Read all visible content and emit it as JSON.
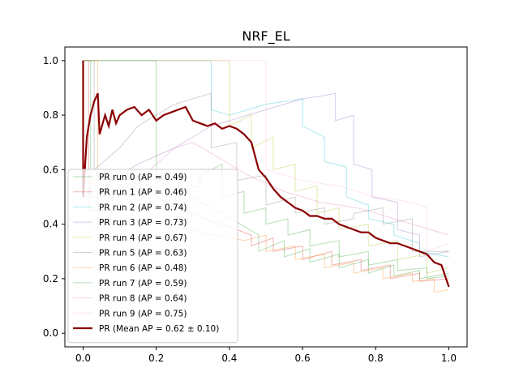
{
  "chart_data": {
    "type": "line",
    "title": "NRF_EL",
    "xlabel": "",
    "ylabel": "",
    "xlim": [
      -0.05,
      1.05
    ],
    "ylim": [
      -0.05,
      1.05
    ],
    "xticks": [
      0.0,
      0.2,
      0.4,
      0.6,
      0.8,
      1.0
    ],
    "yticks": [
      0.0,
      0.2,
      0.4,
      0.6,
      0.8,
      1.0
    ],
    "xtick_labels": [
      "0.0",
      "0.2",
      "0.4",
      "0.6",
      "0.8",
      "1.0"
    ],
    "ytick_labels": [
      "0.0",
      "0.2",
      "0.4",
      "0.6",
      "0.8",
      "1.0"
    ],
    "grid": false,
    "legend_position": "lower-left",
    "series": [
      {
        "name": "PR run 0 (AP = 0.49)",
        "color": "#2ca02c",
        "x": [
          0,
          0.02,
          0.02,
          0.06,
          0.06,
          0.15,
          0.2,
          0.28,
          0.32,
          0.38,
          0.43,
          0.48,
          0.48,
          0.55,
          0.55,
          0.62,
          0.62,
          0.7,
          0.7,
          0.78,
          0.78,
          0.85,
          0.85,
          0.92,
          0.92,
          1.0
        ],
        "y": [
          1.0,
          1.0,
          0.5,
          0.5,
          0.55,
          0.6,
          0.56,
          0.52,
          0.48,
          0.44,
          0.4,
          0.36,
          0.3,
          0.34,
          0.28,
          0.31,
          0.26,
          0.29,
          0.24,
          0.27,
          0.22,
          0.25,
          0.21,
          0.23,
          0.2,
          0.22
        ]
      },
      {
        "name": "PR run 1 (AP = 0.46)",
        "color": "#d62728",
        "x": [
          0,
          0.015,
          0.015,
          0.08,
          0.08,
          0.14,
          0.2,
          0.26,
          0.33,
          0.4,
          0.46,
          0.46,
          0.52,
          0.52,
          0.6,
          0.6,
          0.68,
          0.68,
          0.76,
          0.76,
          0.84,
          0.84,
          0.92,
          0.92,
          1.0
        ],
        "y": [
          1.0,
          1.0,
          0.45,
          0.45,
          0.52,
          0.55,
          0.5,
          0.46,
          0.42,
          0.39,
          0.36,
          0.32,
          0.35,
          0.3,
          0.32,
          0.27,
          0.3,
          0.25,
          0.27,
          0.23,
          0.25,
          0.2,
          0.22,
          0.19,
          0.2
        ]
      },
      {
        "name": "PR run 2 (AP = 0.74)",
        "color": "#17becf",
        "x": [
          0,
          0.35,
          0.35,
          0.4,
          0.45,
          0.5,
          0.55,
          0.6,
          0.6,
          0.66,
          0.66,
          0.72,
          0.72,
          0.78,
          0.78,
          0.85,
          0.85,
          0.92,
          0.92,
          1.0
        ],
        "y": [
          1.0,
          1.0,
          0.82,
          0.8,
          0.82,
          0.84,
          0.85,
          0.86,
          0.76,
          0.72,
          0.63,
          0.61,
          0.5,
          0.47,
          0.42,
          0.4,
          0.36,
          0.33,
          0.3,
          0.28
        ]
      },
      {
        "name": "PR run 3 (AP = 0.73)",
        "color": "#9467bd",
        "x": [
          0,
          0.05,
          0.1,
          0.15,
          0.2,
          0.25,
          0.3,
          0.35,
          0.4,
          0.45,
          0.5,
          0.55,
          0.6,
          0.65,
          0.69,
          0.69,
          0.74,
          0.74,
          0.79,
          0.79,
          0.86,
          0.86,
          0.92,
          0.92,
          1.0
        ],
        "y": [
          0.5,
          0.53,
          0.58,
          0.62,
          0.65,
          0.68,
          0.72,
          0.76,
          0.78,
          0.8,
          0.82,
          0.84,
          0.86,
          0.87,
          0.88,
          0.78,
          0.8,
          0.62,
          0.6,
          0.5,
          0.48,
          0.38,
          0.36,
          0.28,
          0.3
        ]
      },
      {
        "name": "PR run 4 (AP = 0.67)",
        "color": "#bcbd22",
        "x": [
          0,
          0.4,
          0.4,
          0.46,
          0.46,
          0.52,
          0.52,
          0.58,
          0.58,
          0.64,
          0.64,
          0.7,
          0.7,
          0.78,
          0.78,
          0.86,
          0.86,
          0.94,
          0.94,
          1.0
        ],
        "y": [
          1.0,
          1.0,
          0.76,
          0.8,
          0.68,
          0.72,
          0.6,
          0.62,
          0.52,
          0.54,
          0.44,
          0.46,
          0.38,
          0.4,
          0.32,
          0.34,
          0.27,
          0.29,
          0.22,
          0.24
        ]
      },
      {
        "name": "PR run 5 (AP = 0.63)",
        "color": "#7f7f7f",
        "x": [
          0,
          0.03,
          0.03,
          0.1,
          0.15,
          0.2,
          0.25,
          0.3,
          0.35,
          0.35,
          0.42,
          0.42,
          0.5,
          0.5,
          0.58,
          0.58,
          0.66,
          0.66,
          0.74,
          0.74,
          0.82,
          0.82,
          0.9,
          0.9,
          1.0
        ],
        "y": [
          1.0,
          1.0,
          0.6,
          0.68,
          0.76,
          0.8,
          0.84,
          0.86,
          0.88,
          0.68,
          0.7,
          0.56,
          0.58,
          0.47,
          0.5,
          0.44,
          0.46,
          0.4,
          0.42,
          0.44,
          0.46,
          0.4,
          0.42,
          0.3,
          0.3
        ]
      },
      {
        "name": "PR run 6 (AP = 0.48)",
        "color": "#ff7f0e",
        "x": [
          0,
          0.04,
          0.04,
          0.12,
          0.2,
          0.28,
          0.36,
          0.44,
          0.5,
          0.5,
          0.58,
          0.58,
          0.66,
          0.66,
          0.74,
          0.74,
          0.82,
          0.82,
          0.9,
          0.9,
          0.96,
          0.96,
          1.0
        ],
        "y": [
          1.0,
          1.0,
          0.4,
          0.42,
          0.4,
          0.38,
          0.36,
          0.34,
          0.36,
          0.3,
          0.32,
          0.27,
          0.29,
          0.24,
          0.26,
          0.22,
          0.24,
          0.2,
          0.22,
          0.19,
          0.2,
          0.15,
          0.16
        ]
      },
      {
        "name": "PR run 7 (AP = 0.59)",
        "color": "#2ca02c",
        "x": [
          0,
          0.2,
          0.2,
          0.26,
          0.26,
          0.32,
          0.32,
          0.38,
          0.38,
          0.44,
          0.44,
          0.5,
          0.5,
          0.56,
          0.56,
          0.62,
          0.62,
          0.7,
          0.7,
          0.78,
          0.78,
          0.86,
          0.86,
          0.94,
          0.94,
          1.0
        ],
        "y": [
          1.0,
          1.0,
          0.56,
          0.58,
          0.52,
          0.54,
          0.58,
          0.62,
          0.5,
          0.52,
          0.44,
          0.46,
          0.4,
          0.42,
          0.36,
          0.38,
          0.32,
          0.34,
          0.28,
          0.3,
          0.25,
          0.27,
          0.23,
          0.24,
          0.2,
          0.21
        ]
      },
      {
        "name": "PR run 8 (AP = 0.64)",
        "color": "#e377c2",
        "x": [
          0,
          0.05,
          0.1,
          0.15,
          0.2,
          0.25,
          0.3,
          0.35,
          0.4,
          0.45,
          0.5,
          0.55,
          0.6,
          0.65,
          0.7,
          0.75,
          0.8,
          0.85,
          0.9,
          0.95,
          1.0
        ],
        "y": [
          0.35,
          0.4,
          0.48,
          0.56,
          0.62,
          0.68,
          0.7,
          0.66,
          0.62,
          0.58,
          0.55,
          0.52,
          0.5,
          0.48,
          0.47,
          0.46,
          0.44,
          0.42,
          0.4,
          0.38,
          0.36
        ]
      },
      {
        "name": "PR run 9 (AP = 0.75)",
        "color": "#f7b6d2",
        "x": [
          0,
          0.5,
          0.5,
          0.55,
          0.6,
          0.65,
          0.7,
          0.75,
          0.8,
          0.85,
          0.9,
          0.94,
          0.94,
          1.0
        ],
        "y": [
          1.0,
          1.0,
          0.6,
          0.58,
          0.56,
          0.55,
          0.54,
          0.52,
          0.5,
          0.49,
          0.48,
          0.46,
          0.3,
          0.33
        ]
      },
      {
        "name": "PR (Mean AP = 0.62 ± 0.10)",
        "color": "#8b0000",
        "mean": true,
        "x": [
          0,
          0,
          0.01,
          0.02,
          0.03,
          0.04,
          0.045,
          0.06,
          0.07,
          0.08,
          0.09,
          0.1,
          0.12,
          0.14,
          0.16,
          0.18,
          0.2,
          0.22,
          0.24,
          0.26,
          0.28,
          0.3,
          0.32,
          0.34,
          0.36,
          0.38,
          0.4,
          0.42,
          0.44,
          0.46,
          0.48,
          0.5,
          0.52,
          0.54,
          0.56,
          0.58,
          0.6,
          0.62,
          0.64,
          0.66,
          0.68,
          0.7,
          0.72,
          0.74,
          0.76,
          0.78,
          0.8,
          0.82,
          0.84,
          0.86,
          0.88,
          0.9,
          0.92,
          0.94,
          0.96,
          0.98,
          1.0
        ],
        "y": [
          1.0,
          0.5,
          0.72,
          0.8,
          0.85,
          0.88,
          0.73,
          0.8,
          0.76,
          0.82,
          0.77,
          0.8,
          0.82,
          0.83,
          0.8,
          0.82,
          0.78,
          0.8,
          0.81,
          0.82,
          0.83,
          0.78,
          0.77,
          0.76,
          0.77,
          0.75,
          0.76,
          0.75,
          0.73,
          0.7,
          0.6,
          0.57,
          0.53,
          0.5,
          0.48,
          0.46,
          0.45,
          0.43,
          0.43,
          0.42,
          0.42,
          0.4,
          0.39,
          0.38,
          0.37,
          0.37,
          0.35,
          0.34,
          0.33,
          0.33,
          0.32,
          0.31,
          0.3,
          0.29,
          0.26,
          0.25,
          0.17
        ]
      }
    ]
  }
}
